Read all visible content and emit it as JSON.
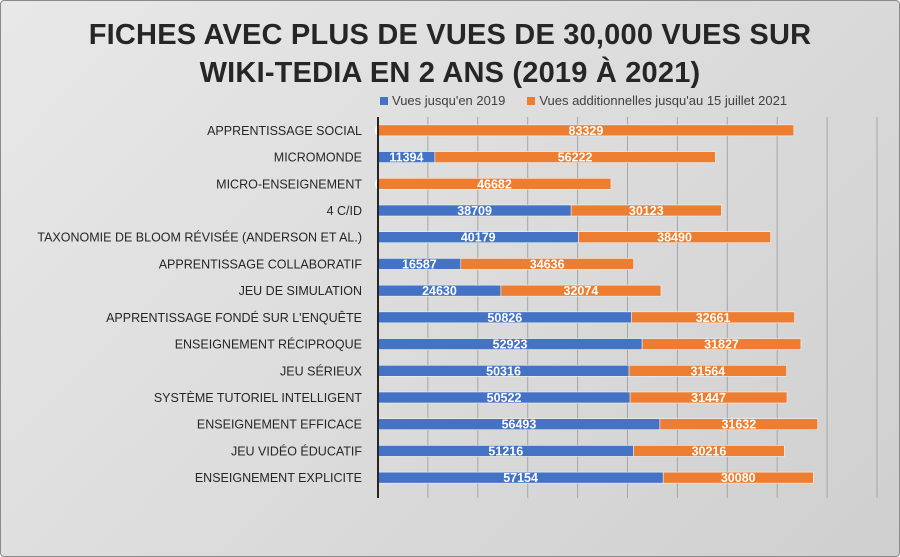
{
  "chart_data": {
    "type": "bar",
    "orientation": "horizontal",
    "stacked": true,
    "title": "FICHES  AVEC PLUS DE VUES DE 30,000 VUES SUR WIKI-TEDIA EN 2 ANS (2019 À 2021)",
    "title_lines": [
      "FICHES  AVEC PLUS DE VUES DE 30,000 VUES SUR",
      "WIKI-TEDIA EN 2 ANS (2019 À 2021)"
    ],
    "categories": [
      "APPRENTISSAGE SOCIAL",
      "MICROMONDE",
      "MICRO-ENSEIGNEMENT",
      "4 C/ID",
      "TAXONOMIE DE BLOOM RÉVISÉE (ANDERSON ET AL.)",
      "APPRENTISSAGE COLLABORATIF",
      "JEU DE SIMULATION",
      "APPRENTISSAGE FONDÉ SUR L'ENQUÊTE",
      "ENSEIGNEMENT RÉCIPROQUE",
      "JEU SÉRIEUX",
      "SYSTÈME TUTORIEL INTELLIGENT",
      "ENSEIGNEMENT EFFICACE",
      "JEU VIDÉO ÉDUCATIF",
      "ENSEIGNEMENT EXPLICITE"
    ],
    "series": [
      {
        "name": "Vues jusqu'en 2019",
        "color": "#4472c4",
        "values": [
          0,
          11394,
          0,
          38709,
          40179,
          16587,
          24630,
          50826,
          52923,
          50316,
          50522,
          56493,
          51216,
          57154
        ]
      },
      {
        "name": "Vues additionnelles jusqu'au 15 juillet 2021",
        "color": "#ed7d31",
        "values": [
          83329,
          56222,
          46682,
          30123,
          38490,
          34636,
          32074,
          32661,
          31827,
          31564,
          31447,
          31632,
          30216,
          30080
        ]
      }
    ],
    "xlim": [
      0,
      100000
    ],
    "x_gridline_step": 10000,
    "x_tick_labels_shown": false,
    "grid": true,
    "legend_position": "top",
    "data_labels": true
  }
}
